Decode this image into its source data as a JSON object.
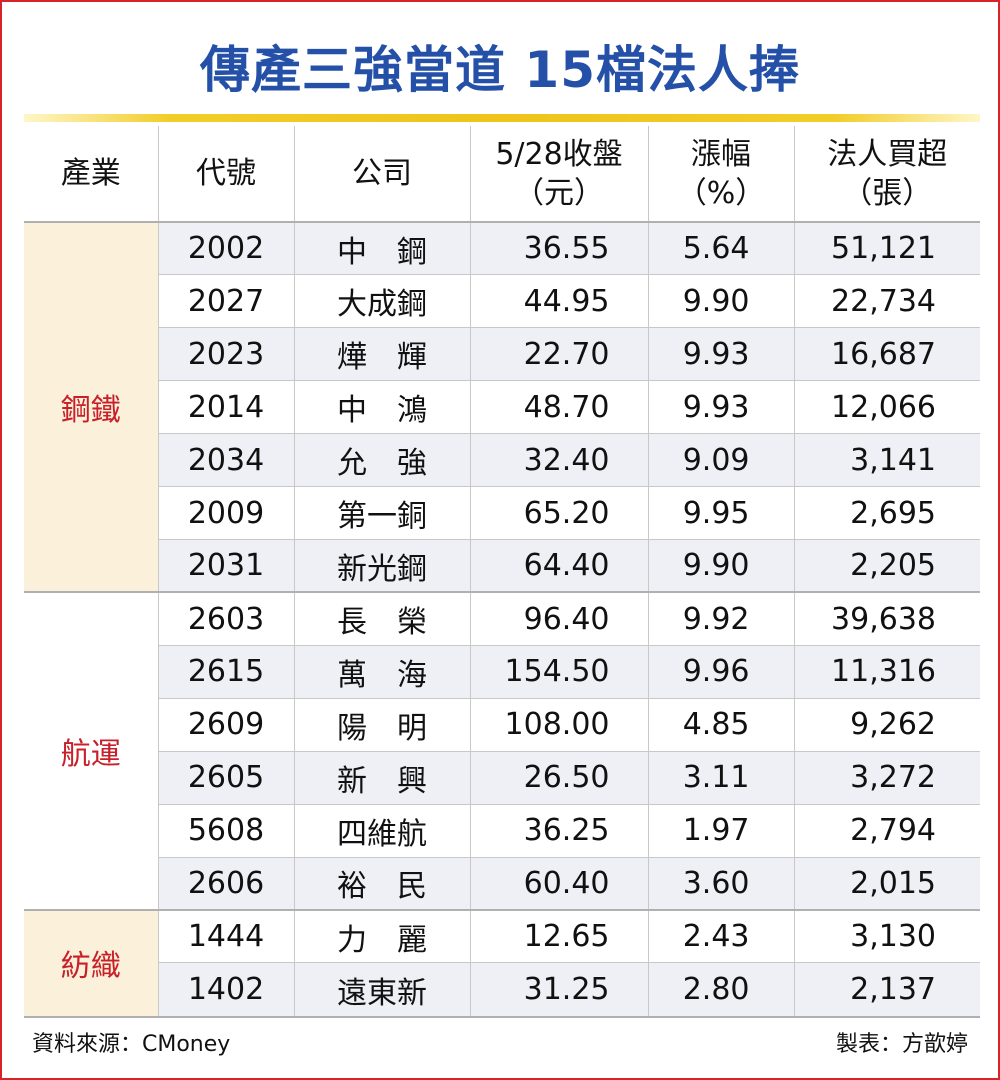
{
  "title": "傳產三強當道 15檔法人捧",
  "colors": {
    "title": "#2450a8",
    "industry_label": "#c8202b",
    "gold_rule": "#f0c419",
    "frame": "#d8232a"
  },
  "headers": {
    "industry": "產業",
    "code": "代號",
    "company": "公司",
    "close_line1": "5/28收盤",
    "close_line2": "（元）",
    "change_line1": "漲幅",
    "change_line2": "（%）",
    "buy_line1": "法人買超",
    "buy_line2": "（張）"
  },
  "groups": [
    {
      "industry": "鋼鐵",
      "rows": [
        {
          "code": "2002",
          "company": "中　鋼",
          "close": "36.55",
          "change": "5.64",
          "net_buy": "51,121"
        },
        {
          "code": "2027",
          "company": "大成鋼",
          "close": "44.95",
          "change": "9.90",
          "net_buy": "22,734"
        },
        {
          "code": "2023",
          "company": "燁　輝",
          "close": "22.70",
          "change": "9.93",
          "net_buy": "16,687"
        },
        {
          "code": "2014",
          "company": "中　鴻",
          "close": "48.70",
          "change": "9.93",
          "net_buy": "12,066"
        },
        {
          "code": "2034",
          "company": "允　強",
          "close": "32.40",
          "change": "9.09",
          "net_buy": "3,141"
        },
        {
          "code": "2009",
          "company": "第一銅",
          "close": "65.20",
          "change": "9.95",
          "net_buy": "2,695"
        },
        {
          "code": "2031",
          "company": "新光鋼",
          "close": "64.40",
          "change": "9.90",
          "net_buy": "2,205"
        }
      ]
    },
    {
      "industry": "航運",
      "rows": [
        {
          "code": "2603",
          "company": "長　榮",
          "close": "96.40",
          "change": "9.92",
          "net_buy": "39,638"
        },
        {
          "code": "2615",
          "company": "萬　海",
          "close": "154.50",
          "change": "9.96",
          "net_buy": "11,316"
        },
        {
          "code": "2609",
          "company": "陽　明",
          "close": "108.00",
          "change": "4.85",
          "net_buy": "9,262"
        },
        {
          "code": "2605",
          "company": "新　興",
          "close": "26.50",
          "change": "3.11",
          "net_buy": "3,272"
        },
        {
          "code": "5608",
          "company": "四維航",
          "close": "36.25",
          "change": "1.97",
          "net_buy": "2,794"
        },
        {
          "code": "2606",
          "company": "裕　民",
          "close": "60.40",
          "change": "3.60",
          "net_buy": "2,015"
        }
      ]
    },
    {
      "industry": "紡織",
      "rows": [
        {
          "code": "1444",
          "company": "力　麗",
          "close": "12.65",
          "change": "2.43",
          "net_buy": "3,130"
        },
        {
          "code": "1402",
          "company": "遠東新",
          "close": "31.25",
          "change": "2.80",
          "net_buy": "2,137"
        }
      ]
    }
  ],
  "footer": {
    "source": "資料來源：CMoney",
    "credit": "製表：方歆婷"
  }
}
